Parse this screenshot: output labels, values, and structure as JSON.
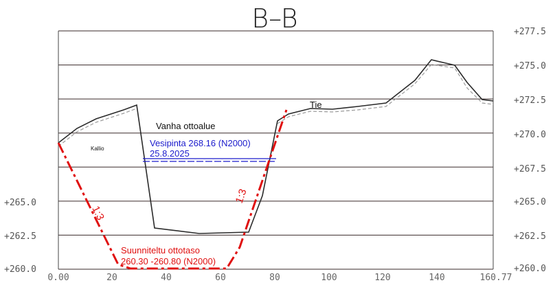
{
  "title": "B–B",
  "elevation_levels": [
    277.5,
    275.0,
    272.5,
    270.0,
    267.5,
    265.0,
    262.5,
    260.0
  ],
  "right_labels": [
    "+277.5",
    "+275.0",
    "+272.5",
    "+270.0",
    "+267.5",
    "+265.0",
    "+262.5",
    "+260.0"
  ],
  "left_labels": [
    "+265.0",
    "+262.5",
    "+260.0"
  ],
  "x_ticks": [
    "0.00",
    "20",
    "40",
    "60",
    "80",
    "100",
    "120",
    "140",
    "160.77"
  ],
  "labels": {
    "tie": "Tie",
    "vanha": "Vanha ottoalue",
    "kallio": "Kallio",
    "water_level": "Vesipinta 268.16 (N2000)",
    "water_date": "25.8.2025",
    "slope_left": "1:3",
    "slope_right": "1:3",
    "planned_line1": "Suunniteltu ottotaso",
    "planned_line2": "260.30 -260.80 (N2000)"
  },
  "colors": {
    "terrain": "#2a2a2a",
    "grid": "#3a2a2a",
    "planned": "#e01010",
    "water": "#1a1acc"
  }
}
